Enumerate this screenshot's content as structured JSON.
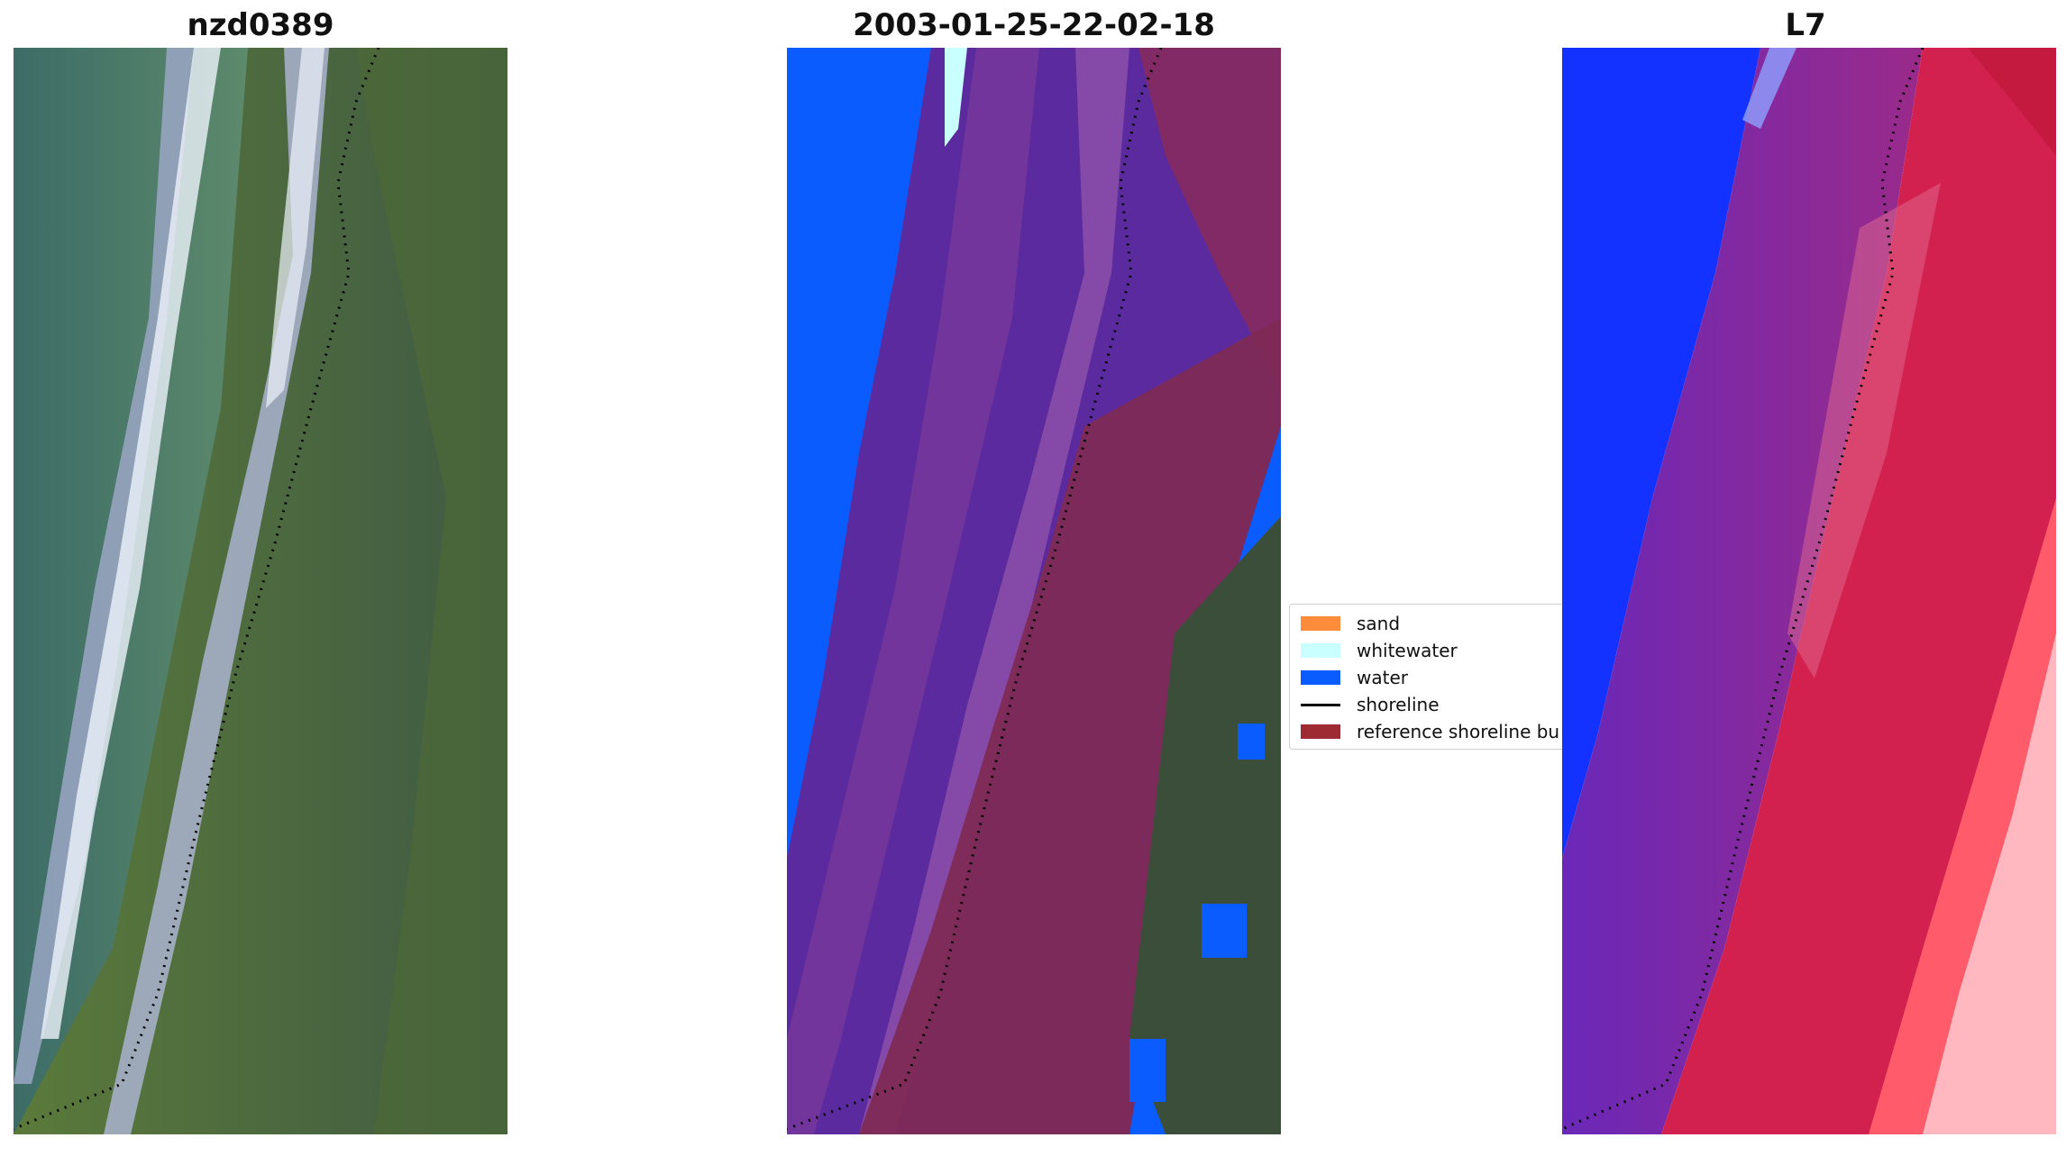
{
  "panels": {
    "left_title": "nzd0389",
    "middle_title": "2003-01-25-22-02-18",
    "right_title": "L7"
  },
  "legend": {
    "items": [
      {
        "label": "sand",
        "color": "#ff8c3a"
      },
      {
        "label": "whitewater",
        "color": "#c9ffff"
      },
      {
        "label": "water",
        "color": "#0a5cff"
      },
      {
        "label": "shoreline",
        "color": "#000000"
      },
      {
        "label": "reference shoreline bu",
        "color": "#9e2a33"
      }
    ]
  },
  "colors": {
    "water_blue": "#0a5cff",
    "land_green": "#4f6a3b",
    "sea_teal": "#3e6e66",
    "overlay_purple": "#5b2a9e",
    "buffer_maroon": "#7e2a55",
    "l7_blue": "#1432ff",
    "l7_red": "#d3214f"
  }
}
